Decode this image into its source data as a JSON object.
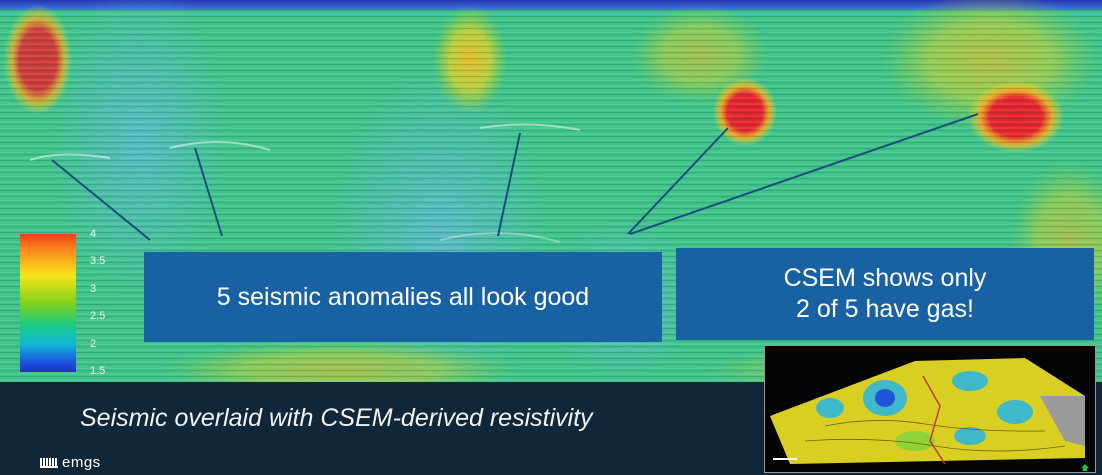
{
  "colorbar": {
    "ticks": [
      "4",
      "3.5",
      "3",
      "2.5",
      "2",
      "1.5"
    ],
    "colors": [
      "#ee3f1c",
      "#fb8b1d",
      "#f6e41a",
      "#84d11a",
      "#19cb84",
      "#13b7d8",
      "#1d4be0"
    ]
  },
  "callouts": {
    "left": "5 seismic anomalies all look good",
    "right_line1": "CSEM shows only",
    "right_line2": "2 of 5 have gas!"
  },
  "caption": "Seismic overlaid with CSEM-derived resistivity",
  "logo": "emgs",
  "colors": {
    "callout_bg": "#1862a4",
    "footer_bg": "#0f2738",
    "background_resistivity": "#3ec38a",
    "high_resistivity": "#e52a2a",
    "pointer_line": "#1b4d7a"
  }
}
